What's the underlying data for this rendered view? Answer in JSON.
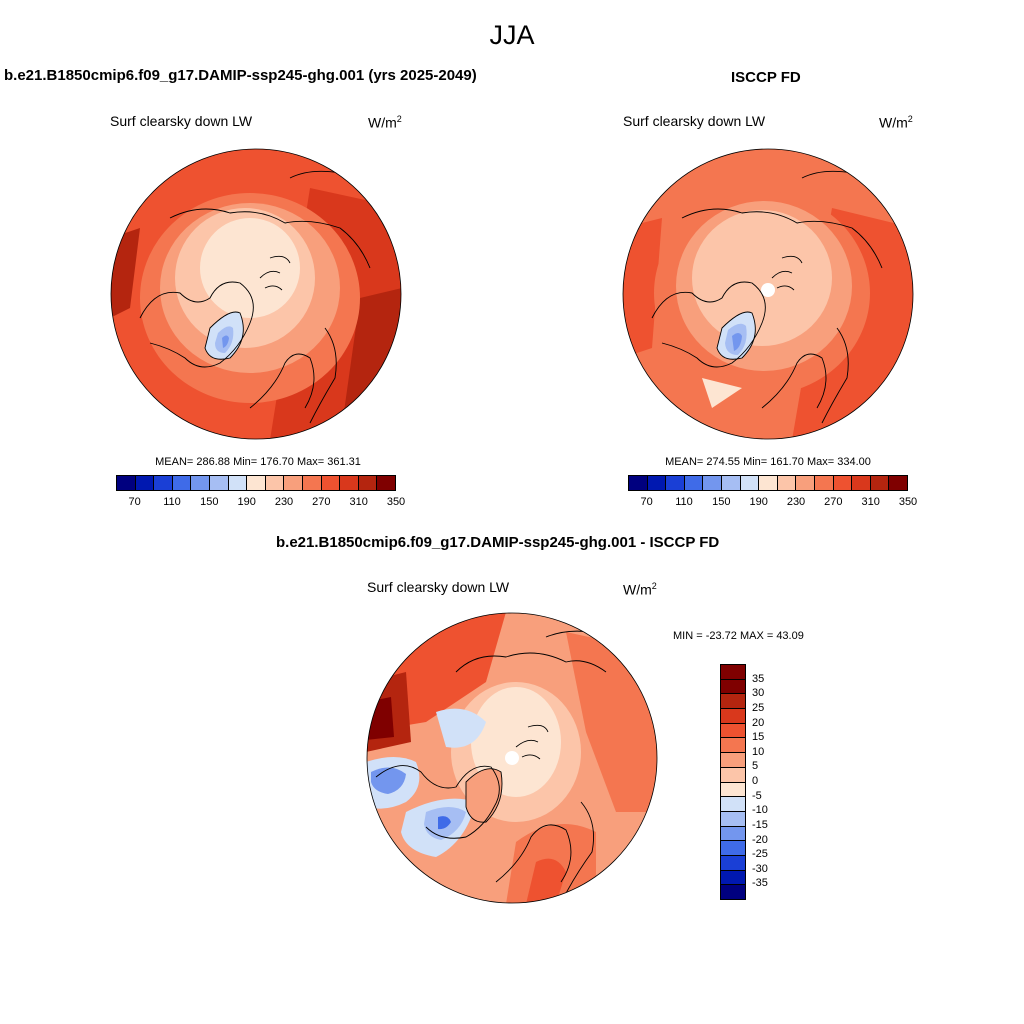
{
  "season": "JJA",
  "panels": [
    {
      "title": "b.e21.B1850cmip6.f09_g17.DAMIP-ssp245-ghg.001 (yrs 2025-2049)",
      "variable": "Surf clearsky down LW",
      "units_base": "W/m",
      "units_exp": "2",
      "stats": "MEAN= 286.88  Min= 176.70  Max= 361.31"
    },
    {
      "title": "ISCCP FD",
      "variable": "Surf clearsky down LW",
      "units_base": "W/m",
      "units_exp": "2",
      "stats": "MEAN= 274.55  Min= 161.70  Max= 334.00"
    }
  ],
  "diff_panel": {
    "title": "b.e21.B1850cmip6.f09_g17.DAMIP-ssp245-ghg.001 - ISCCP FD",
    "variable": "Surf clearsky down LW",
    "units_base": "W/m",
    "units_exp": "2",
    "stats": "MIN = -23.72 MAX =  43.09"
  },
  "colorbar_abs": {
    "colors": [
      "#00007f",
      "#0018b0",
      "#1a3fd6",
      "#3f6be8",
      "#7396ee",
      "#a6bef3",
      "#d1e1f8",
      "#fde5d2",
      "#fcc5a9",
      "#f89f7c",
      "#f47650",
      "#ee5230",
      "#d9381c",
      "#b4250f",
      "#7f0000"
    ],
    "labels": [
      "70",
      "110",
      "150",
      "190",
      "230",
      "270",
      "310",
      "350"
    ]
  },
  "colorbar_diff": {
    "colors": [
      "#7f0000",
      "#b4250f",
      "#d9381c",
      "#ee5230",
      "#f47650",
      "#f89f7c",
      "#fcc5a9",
      "#fde5d2",
      "#d1e1f8",
      "#a6bef3",
      "#7396ee",
      "#3f6be8",
      "#1a3fd6",
      "#0018b0",
      "#00007f"
    ],
    "labels": [
      "35",
      "30",
      "25",
      "20",
      "15",
      "10",
      "5",
      "0",
      "-5",
      "-10",
      "-15",
      "-20",
      "-25",
      "-30",
      "-35"
    ]
  }
}
